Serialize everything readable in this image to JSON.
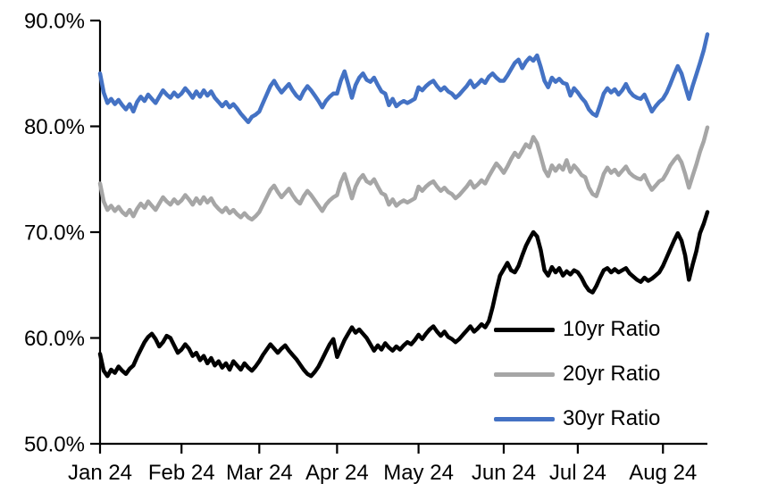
{
  "chart_data": {
    "type": "line",
    "title": "",
    "grid": "off",
    "legend_position": "inside-right-middle",
    "x_axis": {
      "label": "",
      "tick_labels": [
        "Jan 24",
        "Feb 24",
        "Mar 24",
        "Apr 24",
        "May 24",
        "Jun 24",
        "Jul 24",
        "Aug 24"
      ],
      "tick_indices": [
        0,
        22,
        43,
        64,
        86,
        109,
        129,
        152
      ],
      "total_points": 165
    },
    "y_axis": {
      "label": "",
      "min": 50,
      "max": 90,
      "tick_step": 10,
      "tick_labels": [
        "50.0%",
        "60.0%",
        "70.0%",
        "80.0%",
        "90.0%"
      ]
    },
    "series": [
      {
        "name": "10yr Ratio",
        "color": "#000000",
        "values": [
          58.5,
          56.9,
          56.4,
          57.0,
          56.7,
          57.3,
          56.9,
          56.6,
          57.1,
          57.4,
          58.2,
          58.9,
          59.6,
          60.1,
          60.4,
          59.9,
          59.2,
          59.6,
          60.2,
          60.0,
          59.3,
          58.6,
          58.9,
          59.4,
          59.0,
          58.3,
          58.6,
          57.9,
          58.3,
          57.6,
          58.1,
          57.4,
          57.8,
          57.2,
          57.6,
          57.0,
          57.8,
          57.4,
          57.0,
          57.6,
          57.2,
          56.9,
          57.3,
          57.8,
          58.4,
          58.9,
          59.4,
          59.0,
          58.6,
          59.0,
          59.3,
          58.8,
          58.4,
          58.0,
          57.5,
          57.0,
          56.6,
          56.4,
          56.8,
          57.3,
          58.0,
          58.7,
          59.4,
          59.9,
          58.2,
          59.0,
          59.8,
          60.4,
          61.0,
          60.5,
          60.8,
          60.4,
          60.0,
          59.4,
          58.8,
          59.3,
          58.9,
          59.5,
          59.1,
          58.8,
          59.2,
          58.9,
          59.3,
          59.6,
          59.4,
          59.8,
          60.3,
          59.9,
          60.4,
          60.8,
          61.1,
          60.6,
          60.2,
          60.6,
          60.1,
          59.9,
          59.6,
          59.9,
          60.3,
          60.7,
          61.1,
          60.6,
          60.9,
          61.3,
          61.0,
          61.6,
          62.9,
          64.5,
          65.9,
          66.5,
          67.1,
          66.4,
          66.2,
          66.8,
          67.8,
          68.7,
          69.4,
          70.0,
          69.6,
          68.3,
          66.4,
          65.9,
          66.7,
          66.2,
          66.6,
          65.9,
          66.3,
          66.0,
          66.4,
          66.2,
          65.7,
          65.0,
          64.5,
          64.3,
          64.9,
          65.7,
          66.4,
          66.6,
          66.2,
          66.5,
          66.2,
          66.4,
          66.6,
          66.1,
          65.8,
          65.5,
          65.3,
          65.7,
          65.4,
          65.6,
          65.9,
          66.2,
          66.8,
          67.6,
          68.4,
          69.2,
          69.9,
          69.2,
          67.8,
          65.5,
          66.9,
          68.2,
          69.9,
          70.8,
          71.9
        ]
      },
      {
        "name": "20yr Ratio",
        "color": "#A6A6A6",
        "values": [
          74.6,
          72.9,
          72.1,
          72.5,
          72.0,
          72.4,
          71.9,
          71.6,
          72.1,
          71.5,
          72.2,
          72.7,
          72.3,
          72.9,
          72.5,
          72.1,
          72.7,
          73.3,
          72.9,
          72.6,
          73.1,
          72.7,
          73.0,
          73.5,
          73.1,
          72.6,
          73.2,
          72.7,
          73.3,
          72.8,
          73.2,
          72.6,
          72.2,
          71.9,
          72.3,
          71.8,
          72.1,
          71.7,
          71.4,
          71.8,
          71.4,
          71.2,
          71.5,
          71.9,
          72.6,
          73.3,
          74.0,
          74.4,
          73.8,
          73.3,
          73.7,
          74.1,
          73.5,
          73.0,
          72.7,
          73.4,
          73.9,
          73.5,
          73.0,
          72.5,
          72.0,
          72.6,
          73.0,
          73.3,
          73.5,
          74.7,
          75.5,
          74.4,
          73.2,
          74.3,
          75.0,
          75.4,
          74.8,
          74.6,
          75.0,
          74.3,
          73.7,
          73.5,
          72.6,
          73.1,
          72.5,
          72.8,
          73.0,
          72.8,
          73.0,
          73.2,
          74.3,
          73.9,
          74.3,
          74.6,
          74.8,
          74.3,
          73.9,
          74.2,
          73.8,
          73.6,
          73.2,
          73.5,
          73.9,
          74.3,
          74.8,
          74.2,
          74.5,
          74.9,
          74.6,
          75.3,
          75.9,
          76.5,
          76.1,
          75.6,
          76.2,
          76.9,
          77.5,
          77.1,
          77.7,
          78.3,
          78.0,
          79.0,
          78.4,
          77.2,
          75.9,
          75.3,
          76.3,
          75.8,
          76.3,
          75.9,
          76.8,
          75.7,
          76.3,
          75.9,
          75.4,
          75.2,
          74.2,
          73.6,
          73.4,
          74.4,
          75.5,
          76.1,
          75.6,
          75.9,
          75.4,
          75.8,
          76.2,
          75.6,
          75.3,
          75.1,
          75.0,
          75.4,
          74.6,
          74.0,
          74.4,
          74.8,
          75.0,
          75.6,
          76.3,
          76.8,
          77.2,
          76.6,
          75.5,
          74.2,
          75.3,
          76.4,
          77.6,
          78.6,
          79.9
        ]
      },
      {
        "name": "30yr Ratio",
        "color": "#4472C4",
        "values": [
          85.0,
          83.2,
          82.2,
          82.6,
          82.1,
          82.5,
          82.0,
          81.6,
          82.1,
          81.4,
          82.3,
          82.8,
          82.4,
          83.0,
          82.6,
          82.2,
          82.8,
          83.4,
          83.0,
          82.7,
          83.2,
          82.8,
          83.1,
          83.6,
          83.2,
          82.7,
          83.3,
          82.8,
          83.4,
          82.9,
          83.3,
          82.7,
          82.3,
          81.9,
          82.3,
          81.8,
          82.1,
          81.7,
          81.2,
          80.8,
          80.4,
          80.9,
          81.1,
          81.4,
          82.2,
          83.0,
          83.8,
          84.3,
          83.7,
          83.2,
          83.6,
          84.0,
          83.4,
          82.9,
          82.6,
          83.3,
          83.8,
          83.4,
          82.9,
          82.4,
          81.8,
          82.4,
          82.8,
          83.1,
          83.1,
          84.3,
          85.2,
          84.0,
          82.7,
          83.9,
          84.6,
          85.0,
          84.4,
          84.2,
          84.6,
          83.9,
          83.3,
          83.1,
          82.0,
          82.6,
          81.9,
          82.2,
          82.4,
          82.2,
          82.4,
          82.6,
          83.7,
          83.4,
          83.8,
          84.1,
          84.3,
          83.8,
          83.4,
          83.7,
          83.3,
          83.1,
          82.7,
          83.0,
          83.4,
          83.8,
          84.3,
          83.7,
          84.0,
          84.4,
          84.1,
          84.7,
          85.0,
          84.6,
          84.3,
          84.3,
          84.8,
          85.4,
          86.0,
          86.3,
          85.5,
          86.1,
          86.5,
          86.2,
          86.7,
          85.6,
          84.3,
          83.7,
          84.6,
          84.2,
          84.5,
          84.1,
          84.0,
          82.9,
          83.6,
          83.2,
          82.7,
          82.3,
          81.6,
          81.2,
          81.0,
          82.0,
          83.1,
          83.6,
          83.2,
          83.5,
          83.0,
          83.4,
          84.0,
          83.3,
          82.9,
          82.7,
          82.6,
          83.0,
          82.2,
          81.4,
          81.9,
          82.3,
          82.6,
          83.2,
          84.0,
          84.9,
          85.7,
          85.0,
          83.8,
          82.6,
          83.8,
          84.9,
          86.0,
          87.2,
          88.7
        ]
      }
    ]
  }
}
